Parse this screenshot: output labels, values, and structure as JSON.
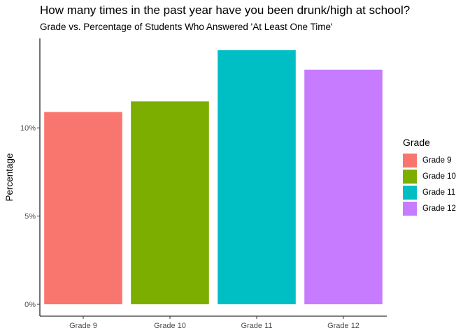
{
  "chart_data": {
    "type": "bar",
    "title": "How many times in the past year have you been drunk/high at school?",
    "subtitle": "Grade vs. Percentage of Students Who Answered 'At Least One Time'",
    "xlabel": "",
    "ylabel": "Percentage",
    "categories": [
      "Grade 9",
      "Grade 10",
      "Grade 11",
      "Grade 12"
    ],
    "values": [
      10.9,
      11.5,
      14.4,
      13.3
    ],
    "unit": "%",
    "ylim": [
      0,
      14.4
    ],
    "yticks": [
      0,
      5,
      10
    ],
    "ytick_labels": [
      "0%",
      "5%",
      "10%"
    ],
    "colors": [
      "#F8766D",
      "#7CAE00",
      "#00BFC4",
      "#C77CFF"
    ],
    "grid": false,
    "legend": {
      "title": "Grade",
      "placement": "right",
      "items": [
        "Grade 9",
        "Grade 10",
        "Grade 11",
        "Grade 12"
      ]
    }
  }
}
